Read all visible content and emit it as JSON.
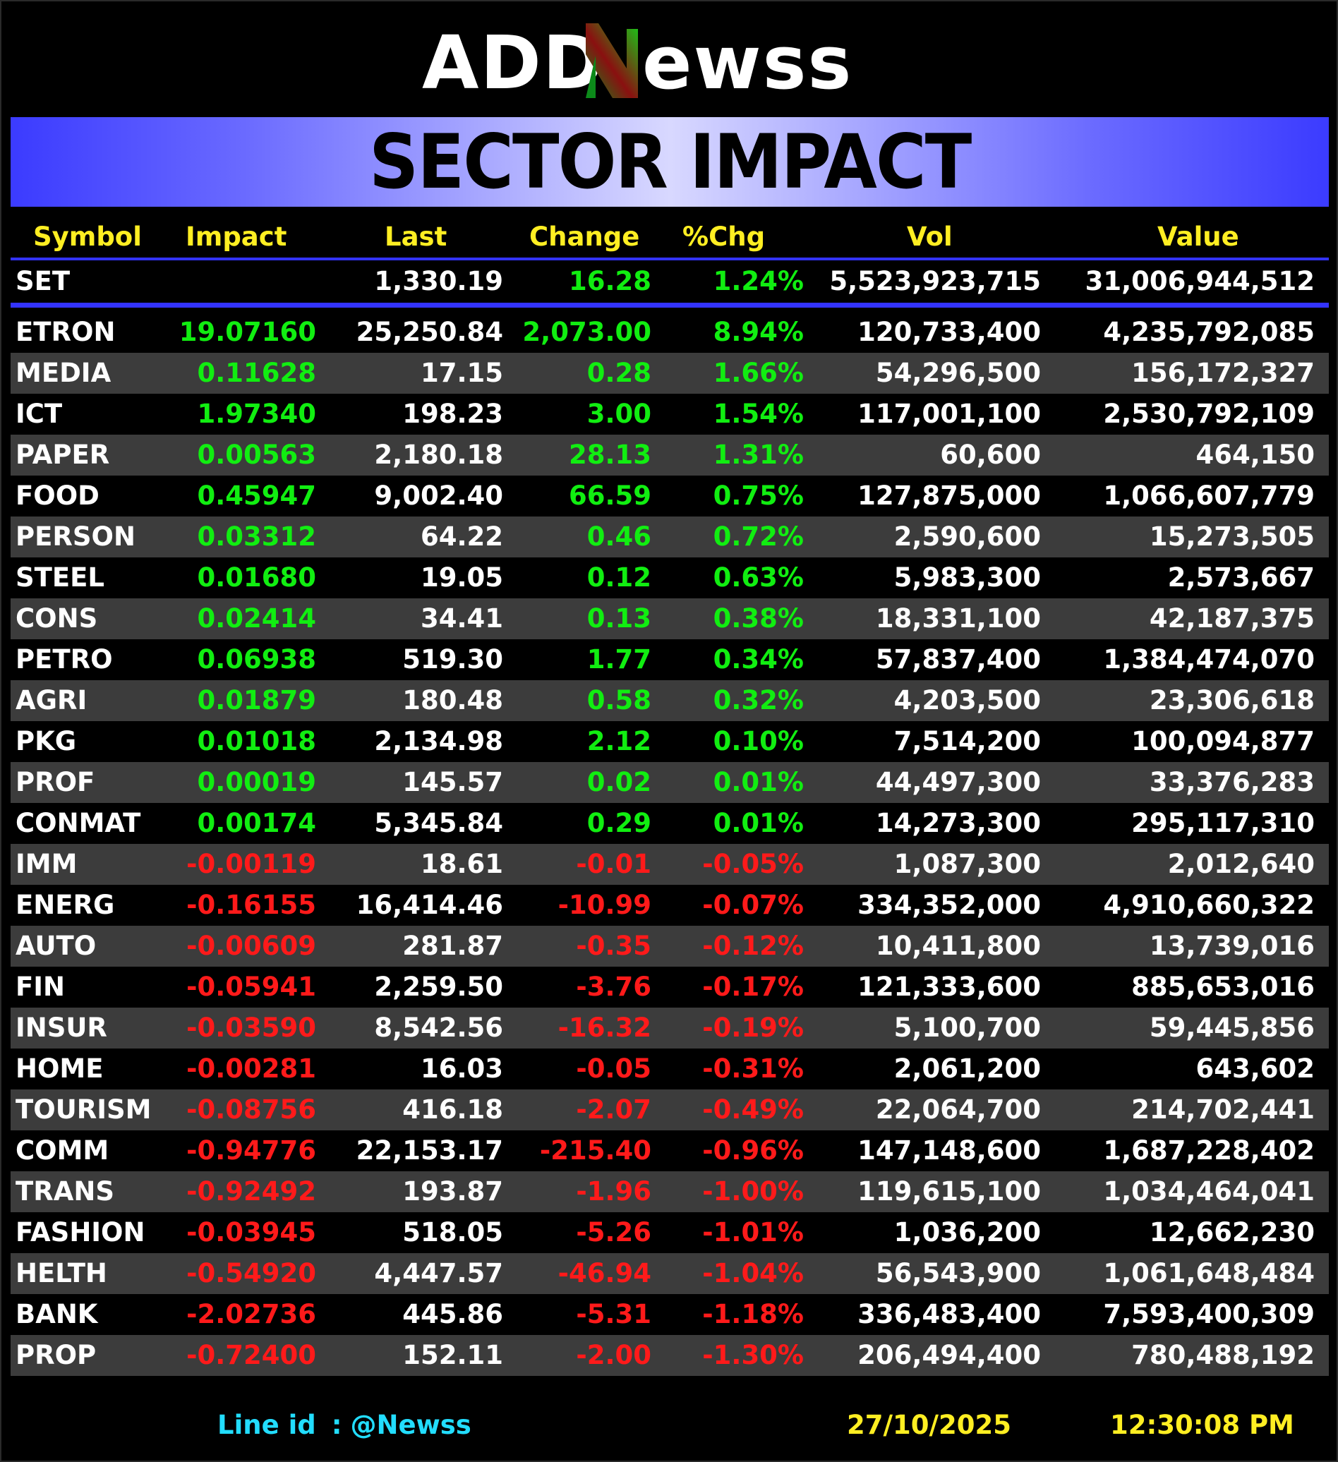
{
  "brand": {
    "name": "ADDNewss",
    "part1": "ADD",
    "part2": "ewss"
  },
  "banner": {
    "title": "SECTOR IMPACT"
  },
  "columns": {
    "symbol": "Symbol",
    "impact": "Impact",
    "last": "Last",
    "change": "Change",
    "pct": "%Chg",
    "vol": "Vol",
    "value": "Value"
  },
  "index_row": {
    "symbol": "SET",
    "impact": "",
    "last": "1,330.19",
    "change": "16.28",
    "pct": "1.24%",
    "vol": "5,523,923,715",
    "value": "31,006,944,512"
  },
  "colors": {
    "positive": "#11ee11",
    "negative": "#ff1a1a",
    "header": "#ffee22",
    "accent": "#3333ff",
    "line_id": "#22ddff"
  },
  "rows": [
    {
      "symbol": "ETRON",
      "impact": "19.07160",
      "last": "25,250.84",
      "change": "2,073.00",
      "pct": "8.94%",
      "vol": "120,733,400",
      "value": "4,235,792,085",
      "dir": "pos"
    },
    {
      "symbol": "MEDIA",
      "impact": "0.11628",
      "last": "17.15",
      "change": "0.28",
      "pct": "1.66%",
      "vol": "54,296,500",
      "value": "156,172,327",
      "dir": "pos"
    },
    {
      "symbol": "ICT",
      "impact": "1.97340",
      "last": "198.23",
      "change": "3.00",
      "pct": "1.54%",
      "vol": "117,001,100",
      "value": "2,530,792,109",
      "dir": "pos"
    },
    {
      "symbol": "PAPER",
      "impact": "0.00563",
      "last": "2,180.18",
      "change": "28.13",
      "pct": "1.31%",
      "vol": "60,600",
      "value": "464,150",
      "dir": "pos"
    },
    {
      "symbol": "FOOD",
      "impact": "0.45947",
      "last": "9,002.40",
      "change": "66.59",
      "pct": "0.75%",
      "vol": "127,875,000",
      "value": "1,066,607,779",
      "dir": "pos"
    },
    {
      "symbol": "PERSON",
      "impact": "0.03312",
      "last": "64.22",
      "change": "0.46",
      "pct": "0.72%",
      "vol": "2,590,600",
      "value": "15,273,505",
      "dir": "pos"
    },
    {
      "symbol": "STEEL",
      "impact": "0.01680",
      "last": "19.05",
      "change": "0.12",
      "pct": "0.63%",
      "vol": "5,983,300",
      "value": "2,573,667",
      "dir": "pos"
    },
    {
      "symbol": "CONS",
      "impact": "0.02414",
      "last": "34.41",
      "change": "0.13",
      "pct": "0.38%",
      "vol": "18,331,100",
      "value": "42,187,375",
      "dir": "pos"
    },
    {
      "symbol": "PETRO",
      "impact": "0.06938",
      "last": "519.30",
      "change": "1.77",
      "pct": "0.34%",
      "vol": "57,837,400",
      "value": "1,384,474,070",
      "dir": "pos"
    },
    {
      "symbol": "AGRI",
      "impact": "0.01879",
      "last": "180.48",
      "change": "0.58",
      "pct": "0.32%",
      "vol": "4,203,500",
      "value": "23,306,618",
      "dir": "pos"
    },
    {
      "symbol": "PKG",
      "impact": "0.01018",
      "last": "2,134.98",
      "change": "2.12",
      "pct": "0.10%",
      "vol": "7,514,200",
      "value": "100,094,877",
      "dir": "pos"
    },
    {
      "symbol": "PROF",
      "impact": "0.00019",
      "last": "145.57",
      "change": "0.02",
      "pct": "0.01%",
      "vol": "44,497,300",
      "value": "33,376,283",
      "dir": "pos"
    },
    {
      "symbol": "CONMAT",
      "impact": "0.00174",
      "last": "5,345.84",
      "change": "0.29",
      "pct": "0.01%",
      "vol": "14,273,300",
      "value": "295,117,310",
      "dir": "pos"
    },
    {
      "symbol": "IMM",
      "impact": "-0.00119",
      "last": "18.61",
      "change": "-0.01",
      "pct": "-0.05%",
      "vol": "1,087,300",
      "value": "2,012,640",
      "dir": "neg"
    },
    {
      "symbol": "ENERG",
      "impact": "-0.16155",
      "last": "16,414.46",
      "change": "-10.99",
      "pct": "-0.07%",
      "vol": "334,352,000",
      "value": "4,910,660,322",
      "dir": "neg"
    },
    {
      "symbol": "AUTO",
      "impact": "-0.00609",
      "last": "281.87",
      "change": "-0.35",
      "pct": "-0.12%",
      "vol": "10,411,800",
      "value": "13,739,016",
      "dir": "neg"
    },
    {
      "symbol": "FIN",
      "impact": "-0.05941",
      "last": "2,259.50",
      "change": "-3.76",
      "pct": "-0.17%",
      "vol": "121,333,600",
      "value": "885,653,016",
      "dir": "neg"
    },
    {
      "symbol": "INSUR",
      "impact": "-0.03590",
      "last": "8,542.56",
      "change": "-16.32",
      "pct": "-0.19%",
      "vol": "5,100,700",
      "value": "59,445,856",
      "dir": "neg"
    },
    {
      "symbol": "HOME",
      "impact": "-0.00281",
      "last": "16.03",
      "change": "-0.05",
      "pct": "-0.31%",
      "vol": "2,061,200",
      "value": "643,602",
      "dir": "neg"
    },
    {
      "symbol": "TOURISM",
      "impact": "-0.08756",
      "last": "416.18",
      "change": "-2.07",
      "pct": "-0.49%",
      "vol": "22,064,700",
      "value": "214,702,441",
      "dir": "neg"
    },
    {
      "symbol": "COMM",
      "impact": "-0.94776",
      "last": "22,153.17",
      "change": "-215.40",
      "pct": "-0.96%",
      "vol": "147,148,600",
      "value": "1,687,228,402",
      "dir": "neg"
    },
    {
      "symbol": "TRANS",
      "impact": "-0.92492",
      "last": "193.87",
      "change": "-1.96",
      "pct": "-1.00%",
      "vol": "119,615,100",
      "value": "1,034,464,041",
      "dir": "neg"
    },
    {
      "symbol": "FASHION",
      "impact": "-0.03945",
      "last": "518.05",
      "change": "-5.26",
      "pct": "-1.01%",
      "vol": "1,036,200",
      "value": "12,662,230",
      "dir": "neg"
    },
    {
      "symbol": "HELTH",
      "impact": "-0.54920",
      "last": "4,447.57",
      "change": "-46.94",
      "pct": "-1.04%",
      "vol": "56,543,900",
      "value": "1,061,648,484",
      "dir": "neg"
    },
    {
      "symbol": "BANK",
      "impact": "-2.02736",
      "last": "445.86",
      "change": "-5.31",
      "pct": "-1.18%",
      "vol": "336,483,400",
      "value": "7,593,400,309",
      "dir": "neg"
    },
    {
      "symbol": "PROP",
      "impact": "-0.72400",
      "last": "152.11",
      "change": "-2.00",
      "pct": "-1.30%",
      "vol": "206,494,400",
      "value": "780,488,192",
      "dir": "neg"
    }
  ],
  "footer": {
    "line_id_label": "Line id",
    "line_id_sep": ":",
    "line_id_value": "@Newss",
    "date": "27/10/2025",
    "time": "12:30:08 PM"
  }
}
